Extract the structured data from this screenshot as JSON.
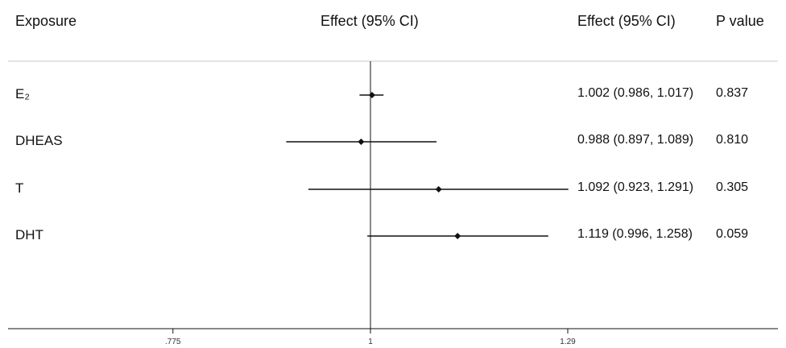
{
  "headers": {
    "exposure": "Exposure",
    "effect_plot": "Effect (95% CI)",
    "effect_text": "Effect (95% CI)",
    "p_value": "P value"
  },
  "rows": [
    {
      "label": "E₂",
      "est_text": "1.002 (0.986, 1.017)",
      "p": "0.837"
    },
    {
      "label": "DHEAS",
      "est_text": "0.988 (0.897, 1.089)",
      "p": "0.810"
    },
    {
      "label": "T",
      "est_text": "1.092 (0.923, 1.291)",
      "p": "0.305"
    },
    {
      "label": "DHT",
      "est_text": "1.119 (0.996, 1.258)",
      "p": "0.059"
    }
  ],
  "chart_data": {
    "type": "forest",
    "xlabel": "",
    "reference_line": 1,
    "xticks": [
      {
        "value": 0.775,
        "label": ".775"
      },
      {
        "value": 1,
        "label": "1"
      },
      {
        "value": 1.29,
        "label": "1.29"
      }
    ],
    "series": [
      {
        "label": "E₂",
        "estimate": 1.002,
        "lower": 0.986,
        "upper": 1.017
      },
      {
        "label": "DHEAS",
        "estimate": 0.988,
        "lower": 0.897,
        "upper": 1.089
      },
      {
        "label": "T",
        "estimate": 1.092,
        "lower": 0.923,
        "upper": 1.291
      },
      {
        "label": "DHT",
        "estimate": 1.119,
        "lower": 0.996,
        "upper": 1.258
      }
    ],
    "colors": {
      "line": "#111111",
      "separator": "#c8c8c8"
    }
  }
}
